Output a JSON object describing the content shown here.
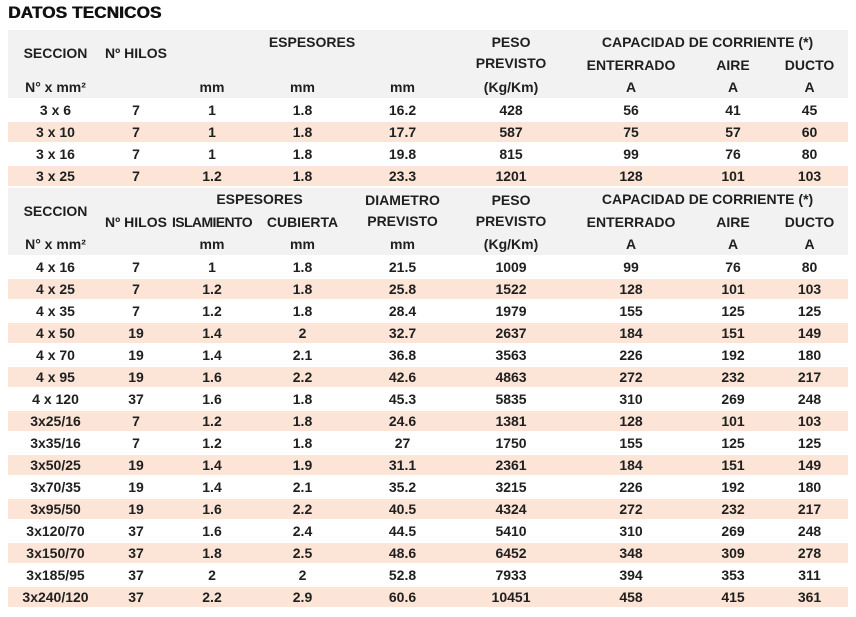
{
  "title": "DATOS TECNICOS",
  "colors": {
    "stripe": "#fce4d6",
    "header_bg": "#f2f2f2",
    "text": "#1f1f1f",
    "title": "#111111"
  },
  "section1": {
    "header": {
      "seccion": "SECCION",
      "hilos": "Nº HILOS",
      "espesores": "ESPESORES",
      "peso_l1": "PESO",
      "peso_l2": "PREVISTO",
      "capacidad": "CAPACIDAD DE CORRIENTE (*)",
      "enterrado": "ENTERRADO",
      "aire": "AIRE",
      "ducto": "DUCTO",
      "unit_seccion": "N° x mm²",
      "unit_mm1": "mm",
      "unit_mm2": "mm",
      "unit_mm3": "mm",
      "unit_peso": "(Kg/Km)",
      "unit_a1": "A",
      "unit_a2": "A",
      "unit_a3": "A"
    },
    "rows": [
      [
        "3 x 6",
        "7",
        "1",
        "1.8",
        "16.2",
        "428",
        "56",
        "41",
        "45"
      ],
      [
        "3 x 10",
        "7",
        "1",
        "1.8",
        "17.7",
        "587",
        "75",
        "57",
        "60"
      ],
      [
        "3 x 16",
        "7",
        "1",
        "1.8",
        "19.8",
        "815",
        "99",
        "76",
        "80"
      ],
      [
        "3 x 25",
        "7",
        "1.2",
        "1.8",
        "23.3",
        "1201",
        "128",
        "101",
        "103"
      ]
    ]
  },
  "section2": {
    "header": {
      "seccion": "SECCION",
      "hilos": "Nº HILOS",
      "espesores": "ESPESORES",
      "aislamiento": "ISLAMIENTO",
      "cubierta": "CUBIERTA",
      "diametro_l1": "DIAMETRO",
      "diametro_l2": "PREVISTO",
      "peso_l1": "PESO",
      "peso_l2": "PREVISTO",
      "capacidad": "CAPACIDAD DE CORRIENTE (*)",
      "enterrado": "ENTERRADO",
      "aire": "AIRE",
      "ducto": "DUCTO",
      "unit_seccion": "N° x mm²",
      "unit_mm1": "mm",
      "unit_mm2": "mm",
      "unit_mm3": "mm",
      "unit_peso": "(Kg/Km)",
      "unit_a1": "A",
      "unit_a2": "A",
      "unit_a3": "A"
    },
    "rows": [
      [
        "4 x 16",
        "7",
        "1",
        "1.8",
        "21.5",
        "1009",
        "99",
        "76",
        "80"
      ],
      [
        "4 x 25",
        "7",
        "1.2",
        "1.8",
        "25.8",
        "1522",
        "128",
        "101",
        "103"
      ],
      [
        "4 x 35",
        "7",
        "1.2",
        "1.8",
        "28.4",
        "1979",
        "155",
        "125",
        "125"
      ],
      [
        "4 x 50",
        "19",
        "1.4",
        "2",
        "32.7",
        "2637",
        "184",
        "151",
        "149"
      ],
      [
        "4 x 70",
        "19",
        "1.4",
        "2.1",
        "36.8",
        "3563",
        "226",
        "192",
        "180"
      ],
      [
        "4 x 95",
        "19",
        "1.6",
        "2.2",
        "42.6",
        "4863",
        "272",
        "232",
        "217"
      ],
      [
        "4 x 120",
        "37",
        "1.6",
        "1.8",
        "45.3",
        "5835",
        "310",
        "269",
        "248"
      ],
      [
        "3x25/16",
        "7",
        "1.2",
        "1.8",
        "24.6",
        "1381",
        "128",
        "101",
        "103"
      ],
      [
        "3x35/16",
        "7",
        "1.2",
        "1.8",
        "27",
        "1750",
        "155",
        "125",
        "125"
      ],
      [
        "3x50/25",
        "19",
        "1.4",
        "1.9",
        "31.1",
        "2361",
        "184",
        "151",
        "149"
      ],
      [
        "3x70/35",
        "19",
        "1.4",
        "2.1",
        "35.2",
        "3215",
        "226",
        "192",
        "180"
      ],
      [
        "3x95/50",
        "19",
        "1.6",
        "2.2",
        "40.5",
        "4324",
        "272",
        "232",
        "217"
      ],
      [
        "3x120/70",
        "37",
        "1.6",
        "2.4",
        "44.5",
        "5410",
        "310",
        "269",
        "248"
      ],
      [
        "3x150/70",
        "37",
        "1.8",
        "2.5",
        "48.6",
        "6452",
        "348",
        "309",
        "278"
      ],
      [
        "3x185/95",
        "37",
        "2",
        "2",
        "52.8",
        "7933",
        "394",
        "353",
        "311"
      ],
      [
        "3x240/120",
        "37",
        "2.2",
        "2.9",
        "60.6",
        "10451",
        "458",
        "415",
        "361"
      ]
    ]
  }
}
